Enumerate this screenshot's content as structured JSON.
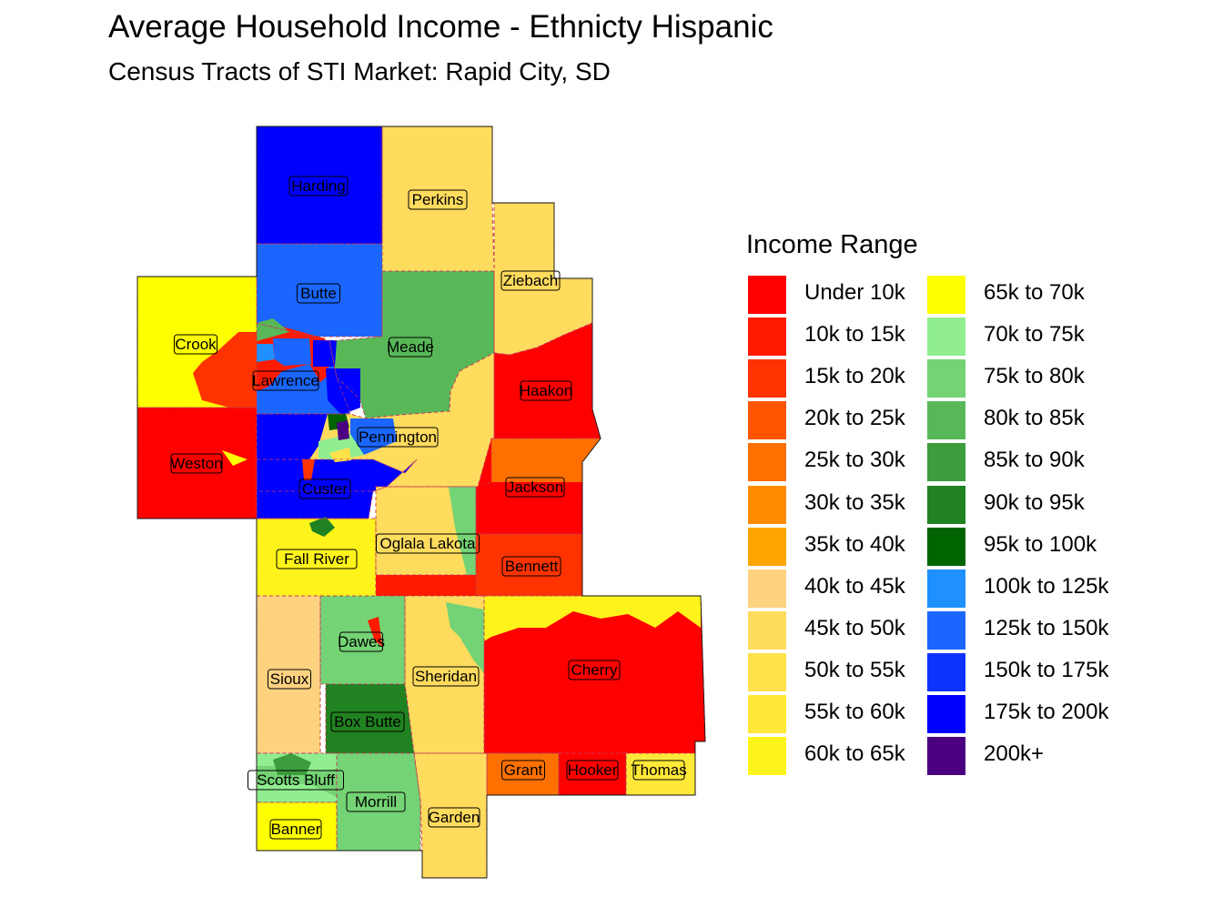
{
  "title": "Average Household Income - Ethnicty Hispanic",
  "subtitle": "Census Tracts of STI Market: Rapid City, SD",
  "legend": {
    "title": "Income Range",
    "items": [
      {
        "label": "Under 10k",
        "color": "#ff0000"
      },
      {
        "label": "10k to 15k",
        "color": "#ff1a00"
      },
      {
        "label": "15k to 20k",
        "color": "#ff3300"
      },
      {
        "label": "20k to 25k",
        "color": "#ff5500"
      },
      {
        "label": "25k to 30k",
        "color": "#ff7000"
      },
      {
        "label": "30k to 35k",
        "color": "#ff8c00"
      },
      {
        "label": "35k to 40k",
        "color": "#ffa500"
      },
      {
        "label": "40k to 45k",
        "color": "#ffd280"
      },
      {
        "label": "45k to 50k",
        "color": "#ffdb5e"
      },
      {
        "label": "50k to 55k",
        "color": "#ffe14a"
      },
      {
        "label": "55k to 60k",
        "color": "#ffe838"
      },
      {
        "label": "60k to 65k",
        "color": "#fff31c"
      },
      {
        "label": "65k to 70k",
        "color": "#ffff00"
      },
      {
        "label": "70k to 75k",
        "color": "#90ee90"
      },
      {
        "label": "75k to 80k",
        "color": "#74d374"
      },
      {
        "label": "80k to 85k",
        "color": "#58b858"
      },
      {
        "label": "85k to 90k",
        "color": "#3c9d3c"
      },
      {
        "label": "90k to 95k",
        "color": "#208220"
      },
      {
        "label": "95k to 100k",
        "color": "#006400"
      },
      {
        "label": "100k to 125k",
        "color": "#1e90ff"
      },
      {
        "label": "125k to 150k",
        "color": "#1a66ff"
      },
      {
        "label": "150k to 175k",
        "color": "#0f33ff"
      },
      {
        "label": "175k to 200k",
        "color": "#0000ff"
      },
      {
        "label": "200k+",
        "color": "#4b0082"
      }
    ]
  },
  "counties": [
    {
      "name": "Harding",
      "color": "#0000ff"
    },
    {
      "name": "Perkins",
      "color": "#ffdb5e"
    },
    {
      "name": "Ziebach",
      "color": "#ffdb5e"
    },
    {
      "name": "Butte",
      "color": "#1a66ff"
    },
    {
      "name": "Meade",
      "color": "#58b858"
    },
    {
      "name": "Crook",
      "color": "#fff31c"
    },
    {
      "name": "Lawrence",
      "color": "#1a66ff"
    },
    {
      "name": "Haakon",
      "color": "#ff0000"
    },
    {
      "name": "Pennington",
      "color": "#ffdb5e"
    },
    {
      "name": "Weston",
      "color": "#ff0000"
    },
    {
      "name": "Custer",
      "color": "#0000ff"
    },
    {
      "name": "Jackson",
      "color": "#ff0000"
    },
    {
      "name": "Fall River",
      "color": "#fff31c"
    },
    {
      "name": "Oglala Lakota",
      "color": "#ffdb5e"
    },
    {
      "name": "Bennett",
      "color": "#ff3300"
    },
    {
      "name": "Dawes",
      "color": "#74d374"
    },
    {
      "name": "Sioux",
      "color": "#ffd280"
    },
    {
      "name": "Sheridan",
      "color": "#ffdb5e"
    },
    {
      "name": "Cherry",
      "color": "#ff0000"
    },
    {
      "name": "Box Butte",
      "color": "#208220"
    },
    {
      "name": "Scotts Bluff",
      "color": "#74d374"
    },
    {
      "name": "Grant",
      "color": "#ff7000"
    },
    {
      "name": "Hooker",
      "color": "#ff0000"
    },
    {
      "name": "Thomas",
      "color": "#ffe838"
    },
    {
      "name": "Morrill",
      "color": "#74d374"
    },
    {
      "name": "Garden",
      "color": "#ffdb5e"
    },
    {
      "name": "Banner",
      "color": "#ffff00"
    }
  ]
}
